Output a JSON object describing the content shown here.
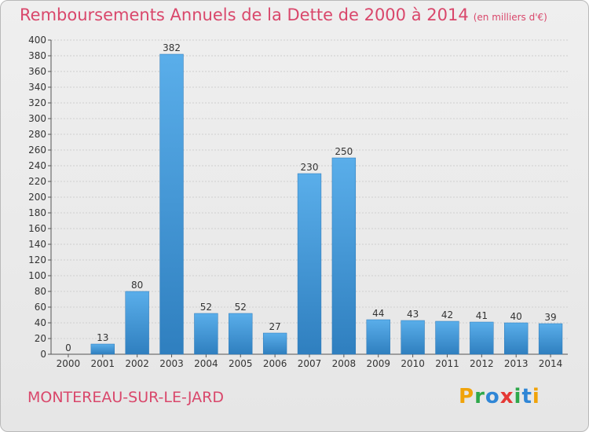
{
  "title": "Remboursements Annuels de la Dette de 2000 à 2014",
  "unit": "(en milliers d'€)",
  "town": "MONTEREAU-SUR-LE-JARD",
  "logo": {
    "text": "Proxiti",
    "letters": [
      {
        "ch": "P",
        "color": "#f0a30a"
      },
      {
        "ch": "r",
        "color": "#2ea84a"
      },
      {
        "ch": "o",
        "color": "#2f86d6"
      },
      {
        "ch": "x",
        "color": "#e53935"
      },
      {
        "ch": "i",
        "color": "#2ea84a"
      },
      {
        "ch": "t",
        "color": "#2f86d6"
      },
      {
        "ch": "i",
        "color": "#f0a30a"
      }
    ]
  },
  "colors": {
    "title": "#d9476b",
    "bar_light": "#5aaeea",
    "bar_dark": "#2f7fbf",
    "grid": "#cfcfcf",
    "axis_text": "#333333"
  },
  "chart_data": {
    "type": "bar",
    "categories": [
      "2000",
      "2001",
      "2002",
      "2003",
      "2004",
      "2005",
      "2006",
      "2007",
      "2008",
      "2009",
      "2010",
      "2011",
      "2012",
      "2013",
      "2014"
    ],
    "values": [
      0,
      13,
      80,
      382,
      52,
      52,
      27,
      230,
      250,
      44,
      43,
      42,
      41,
      40,
      39
    ],
    "ylim": [
      0,
      400
    ],
    "yticks": [
      0,
      20,
      40,
      60,
      80,
      100,
      120,
      140,
      160,
      180,
      200,
      220,
      240,
      260,
      280,
      300,
      320,
      340,
      360,
      380,
      400
    ],
    "grid": true,
    "data_labels": true
  }
}
